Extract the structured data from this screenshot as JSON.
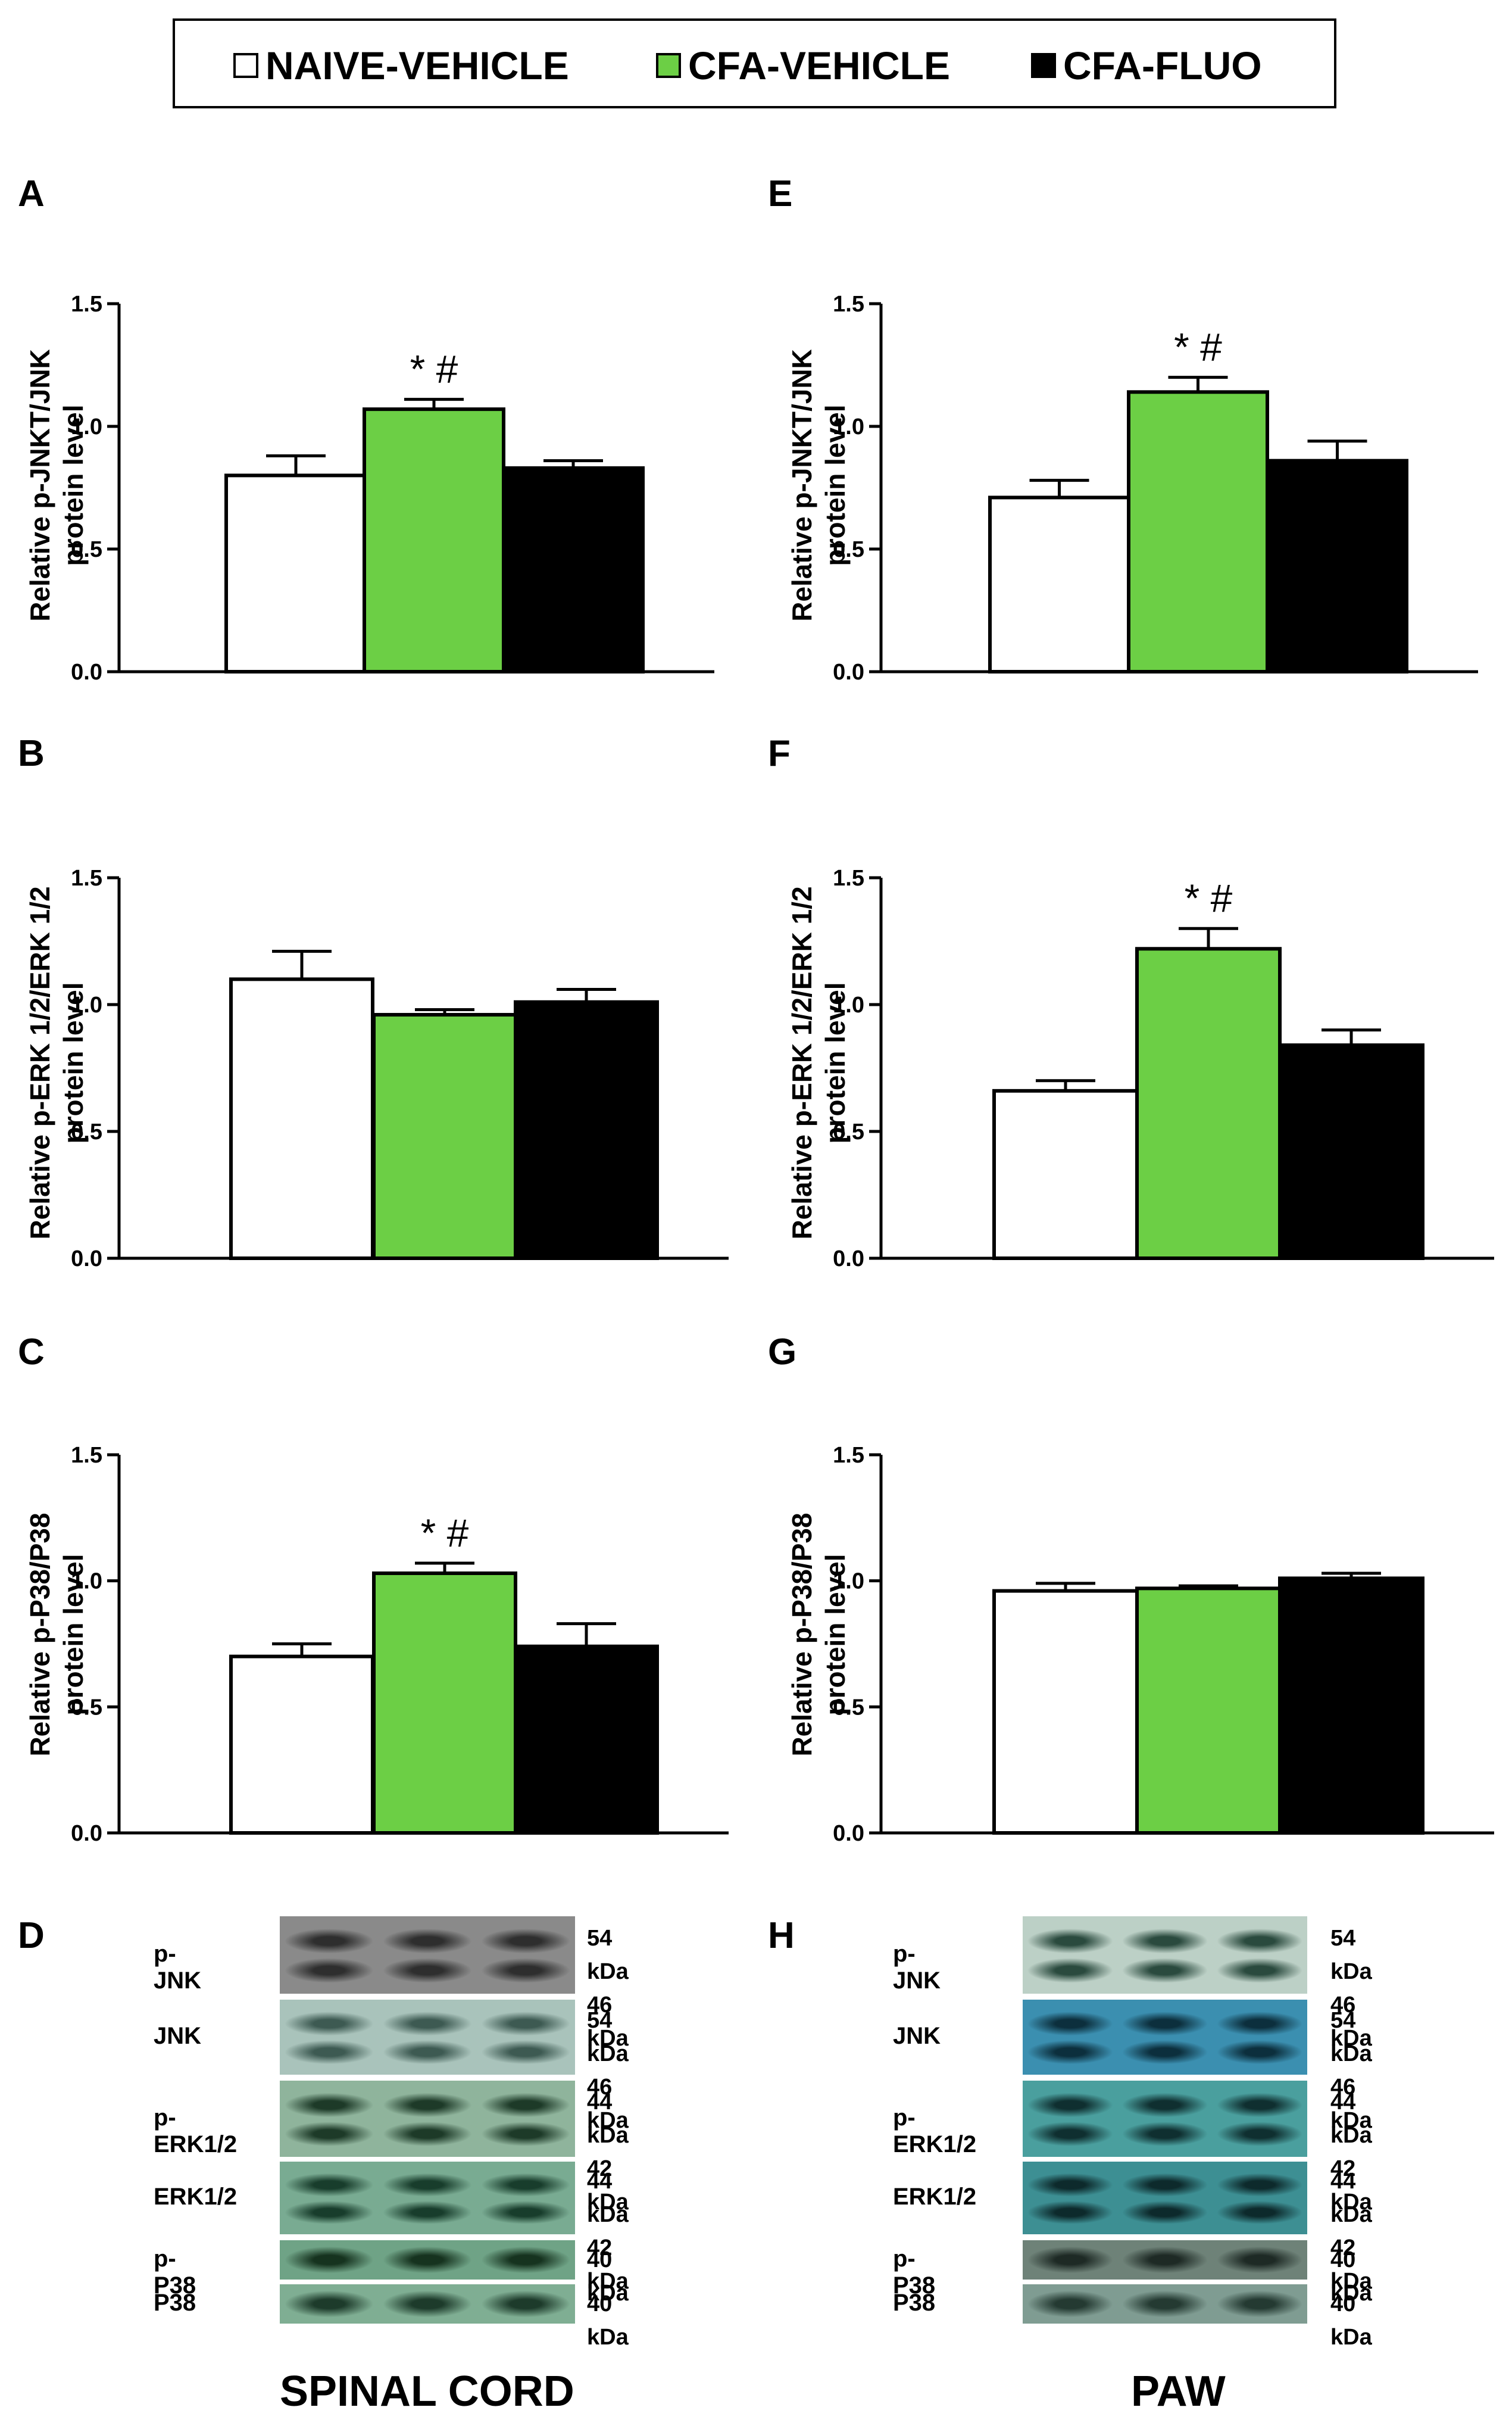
{
  "legend": {
    "items": [
      {
        "label": "NAIVE-VEHICLE",
        "color": "#ffffff"
      },
      {
        "label": "CFA-VEHICLE",
        "color": "#6ccf45"
      },
      {
        "label": "CFA-FLUO",
        "color": "#000000"
      }
    ]
  },
  "panels": {
    "A": "A",
    "B": "B",
    "C": "C",
    "D": "D",
    "E": "E",
    "F": "F",
    "G": "G",
    "H": "H"
  },
  "ylabels": {
    "A": {
      "l1": "Relative p-JNKT/JNK",
      "l2": "protein level"
    },
    "B": {
      "l1": "Relative p-ERK 1/2/ERK 1/2",
      "l2": "protein level"
    },
    "C": {
      "l1": "Relative p-P38/P38",
      "l2": "protein level"
    },
    "E": {
      "l1": "Relative p-JNKT/JNK",
      "l2": "protein level"
    },
    "F": {
      "l1": "Relative p-ERK 1/2/ERK 1/2",
      "l2": "protein level"
    },
    "G": {
      "l1": "Relative p-P38/P38",
      "l2": "protein level"
    }
  },
  "chart_data": [
    {
      "panel": "A",
      "type": "bar",
      "ylim": [
        0,
        1.5
      ],
      "yticks": [
        "0.0",
        "0.5",
        "1.0",
        "1.5"
      ],
      "ylabel": "Relative p-JNKT/JNK protein level",
      "categories": [
        "NAIVE-VEHICLE",
        "CFA-VEHICLE",
        "CFA-FLUO"
      ],
      "values": [
        0.8,
        1.07,
        0.83
      ],
      "errors": [
        0.08,
        0.04,
        0.03
      ],
      "annotations": [
        "",
        "* #",
        ""
      ]
    },
    {
      "panel": "B",
      "type": "bar",
      "ylim": [
        0,
        1.5
      ],
      "yticks": [
        "0.0",
        "0.5",
        "1.0",
        "1.5"
      ],
      "ylabel": "Relative p-ERK 1/2/ERK 1/2 protein level",
      "categories": [
        "NAIVE-VEHICLE",
        "CFA-VEHICLE",
        "CFA-FLUO"
      ],
      "values": [
        1.1,
        0.96,
        1.01
      ],
      "errors": [
        0.11,
        0.02,
        0.05
      ],
      "annotations": [
        "",
        "",
        ""
      ]
    },
    {
      "panel": "C",
      "type": "bar",
      "ylim": [
        0,
        1.5
      ],
      "yticks": [
        "0.0",
        "0.5",
        "1.0",
        "1.5"
      ],
      "ylabel": "Relative p-P38/P38 protein level",
      "categories": [
        "NAIVE-VEHICLE",
        "CFA-VEHICLE",
        "CFA-FLUO"
      ],
      "values": [
        0.7,
        1.03,
        0.74
      ],
      "errors": [
        0.05,
        0.04,
        0.09
      ],
      "annotations": [
        "",
        "* #",
        ""
      ]
    },
    {
      "panel": "E",
      "type": "bar",
      "ylim": [
        0,
        1.5
      ],
      "yticks": [
        "0.0",
        "0.5",
        "1.0",
        "1.5"
      ],
      "ylabel": "Relative p-JNKT/JNK protein level",
      "categories": [
        "NAIVE-VEHICLE",
        "CFA-VEHICLE",
        "CFA-FLUO"
      ],
      "values": [
        0.71,
        1.14,
        0.86
      ],
      "errors": [
        0.07,
        0.06,
        0.08
      ],
      "annotations": [
        "",
        "* #",
        ""
      ]
    },
    {
      "panel": "F",
      "type": "bar",
      "ylim": [
        0,
        1.5
      ],
      "yticks": [
        "0.0",
        "0.5",
        "1.0",
        "1.5"
      ],
      "ylabel": "Relative p-ERK 1/2/ERK 1/2 protein level",
      "categories": [
        "NAIVE-VEHICLE",
        "CFA-VEHICLE",
        "CFA-FLUO"
      ],
      "values": [
        0.66,
        1.22,
        0.84
      ],
      "errors": [
        0.04,
        0.08,
        0.06
      ],
      "annotations": [
        "",
        "* #",
        ""
      ]
    },
    {
      "panel": "G",
      "type": "bar",
      "ylim": [
        0,
        1.5
      ],
      "yticks": [
        "0.0",
        "0.5",
        "1.0",
        "1.5"
      ],
      "ylabel": "Relative p-P38/P38 protein level",
      "categories": [
        "NAIVE-VEHICLE",
        "CFA-VEHICLE",
        "CFA-FLUO"
      ],
      "values": [
        0.96,
        0.97,
        1.01
      ],
      "errors": [
        0.03,
        0.01,
        0.02
      ],
      "annotations": [
        "",
        "",
        ""
      ]
    }
  ],
  "blots": {
    "D": {
      "tissue": "SPINAL CORD",
      "rows": [
        {
          "name": "p-JNK",
          "kda": [
            "54 kDa",
            "46 kDa"
          ],
          "color": "#8a8a8a",
          "band": "#2e2e2e"
        },
        {
          "name": "JNK",
          "kda": [
            "54 kDa",
            "46 kDa"
          ],
          "color": "#a9c3bb",
          "band": "#3d5a52"
        },
        {
          "name": "p-ERK1/2",
          "kda": [
            "44 kDa",
            "42 kDa"
          ],
          "color": "#8fb49c",
          "band": "#1d3a28"
        },
        {
          "name": "ERK1/2",
          "kda": [
            "44 kDa",
            "42 kDa"
          ],
          "color": "#79ab92",
          "band": "#183d2c"
        },
        {
          "name": "p-P38",
          "kda": [
            "40 kDa"
          ],
          "color": "#6fa386",
          "band": "#16331f"
        },
        {
          "name": "P38",
          "kda": [
            "40 kDa"
          ],
          "color": "#7fae93",
          "band": "#1d3b2b"
        }
      ]
    },
    "H": {
      "tissue": "PAW",
      "rows": [
        {
          "name": "p-JNK",
          "kda": [
            "54 kDa",
            "46 kDa"
          ],
          "color": "#bcd0c6",
          "band": "#2a4a3e"
        },
        {
          "name": "JNK",
          "kda": [
            "54 kDa",
            "46 kDa"
          ],
          "color": "#3b8fb0",
          "band": "#0c2f3d"
        },
        {
          "name": "p-ERK1/2",
          "kda": [
            "44 kDa",
            "42 kDa"
          ],
          "color": "#4a9f9e",
          "band": "#0f2f30"
        },
        {
          "name": "ERK1/2",
          "kda": [
            "44 kDa",
            "42 kDa"
          ],
          "color": "#3d8f93",
          "band": "#0d2a2c"
        },
        {
          "name": "p-P38",
          "kda": [
            "40 kDa"
          ],
          "color": "#6e8278",
          "band": "#1e2a25"
        },
        {
          "name": "P38",
          "kda": [
            "40 kDa"
          ],
          "color": "#7f9c92",
          "band": "#243a32"
        }
      ]
    }
  }
}
